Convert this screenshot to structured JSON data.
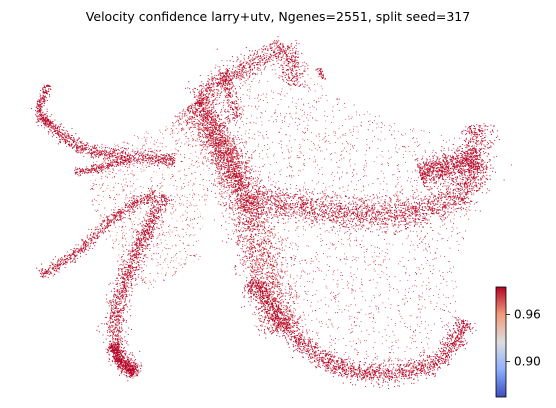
{
  "chart_data": {
    "type": "scatter",
    "title": "Velocity confidence larry+utv, Ngenes=2551, split seed=317",
    "xlabel": "",
    "ylabel": "",
    "axes_visible": false,
    "colormap": "coolwarm",
    "colorbar": {
      "label": "",
      "ticks": [
        {
          "value": 0.9,
          "label": "0.90"
        },
        {
          "value": 0.96,
          "label": "0.96"
        }
      ],
      "range": [
        0.855,
        0.995
      ]
    },
    "value_range_observed": [
      0.93,
      0.99
    ],
    "dominant_value": 0.985
  }
}
